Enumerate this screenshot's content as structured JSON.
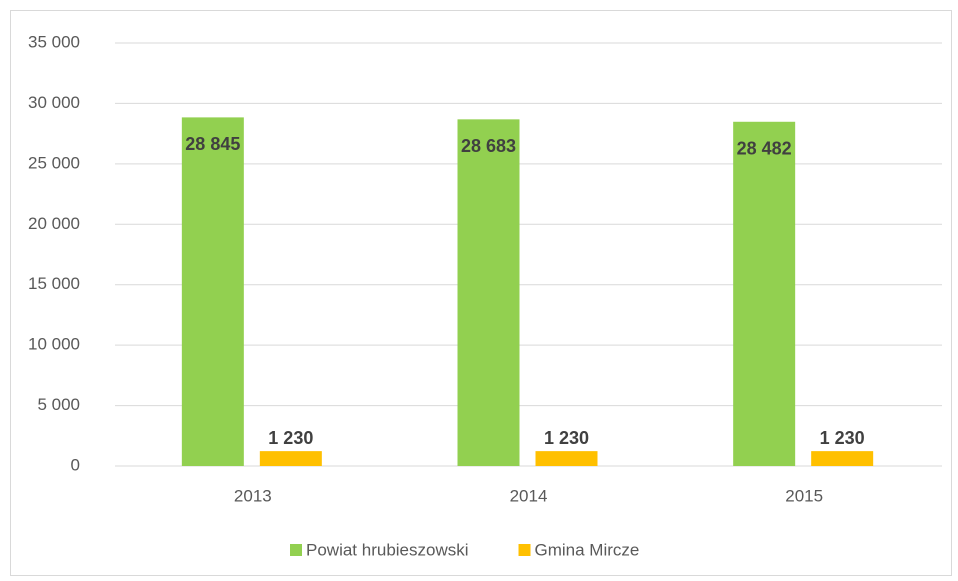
{
  "chart_data": {
    "type": "bar",
    "categories": [
      "2013",
      "2014",
      "2015"
    ],
    "series": [
      {
        "name": "Powiat hrubieszowski",
        "color": "#92d050",
        "values": [
          28845,
          28683,
          28482
        ],
        "value_labels": [
          "28 845",
          "28 683",
          "28 482"
        ]
      },
      {
        "name": "Gmina Mircze",
        "color": "#ffc000",
        "values": [
          1230,
          1230,
          1230
        ],
        "value_labels": [
          "1 230",
          "1 230",
          "1 230"
        ]
      }
    ],
    "ylim": [
      0,
      35000
    ],
    "yticks": [
      0,
      {
        "value": 5000,
        "label": "5 000"
      },
      {
        "value": 10000,
        "label": "10 000"
      },
      {
        "value": 15000,
        "label": "15 000"
      },
      {
        "value": 20000,
        "label": "20 000"
      },
      {
        "value": 25000,
        "label": "25 000"
      },
      {
        "value": 30000,
        "label": "30 000"
      },
      {
        "value": 35000,
        "label": "35 000"
      }
    ],
    "grid": true,
    "legend": "bottom"
  }
}
